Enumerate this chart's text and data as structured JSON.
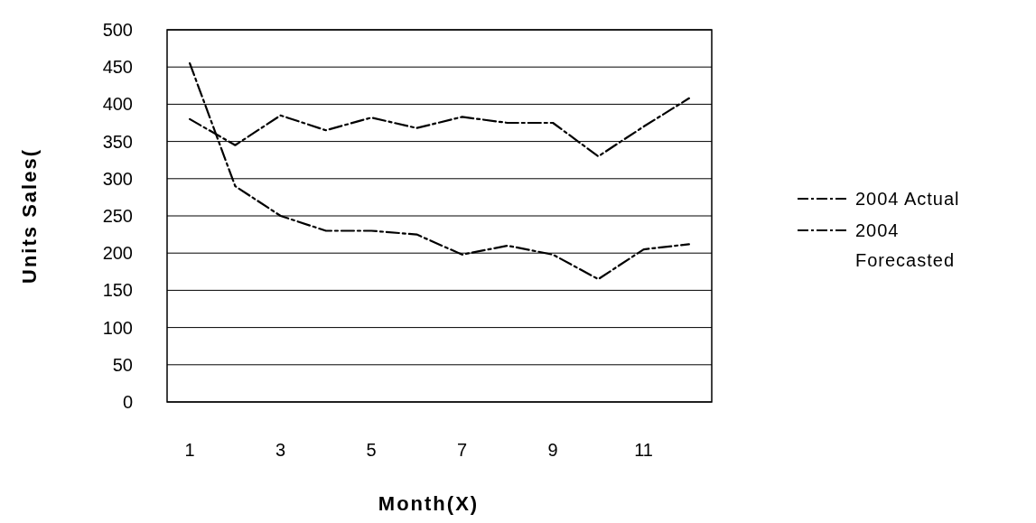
{
  "chart_data": {
    "type": "line",
    "xlabel": "Month(X)",
    "ylabel": "Units Sales(",
    "x": [
      1,
      2,
      3,
      4,
      5,
      6,
      7,
      8,
      9,
      10,
      11,
      12
    ],
    "xlim": [
      0.5,
      12.5
    ],
    "xticks": [
      1,
      3,
      5,
      7,
      9,
      11
    ],
    "ylim": [
      0,
      500
    ],
    "yticks": [
      0,
      50,
      100,
      150,
      200,
      250,
      300,
      350,
      400,
      450,
      500
    ],
    "grid": "y",
    "legend": "right",
    "marker": "none",
    "series": [
      {
        "name": "2004 Actual",
        "color": "#000000",
        "line_style": "dashed",
        "values": [
          455,
          290,
          250,
          230,
          230,
          225,
          198,
          210,
          198,
          165,
          205,
          212
        ]
      },
      {
        "name": "2004 Forecasted",
        "color": "#000000",
        "line_style": "dashed",
        "values": [
          380,
          345,
          385,
          365,
          382,
          368,
          383,
          375,
          375,
          330,
          370,
          408
        ]
      }
    ]
  }
}
